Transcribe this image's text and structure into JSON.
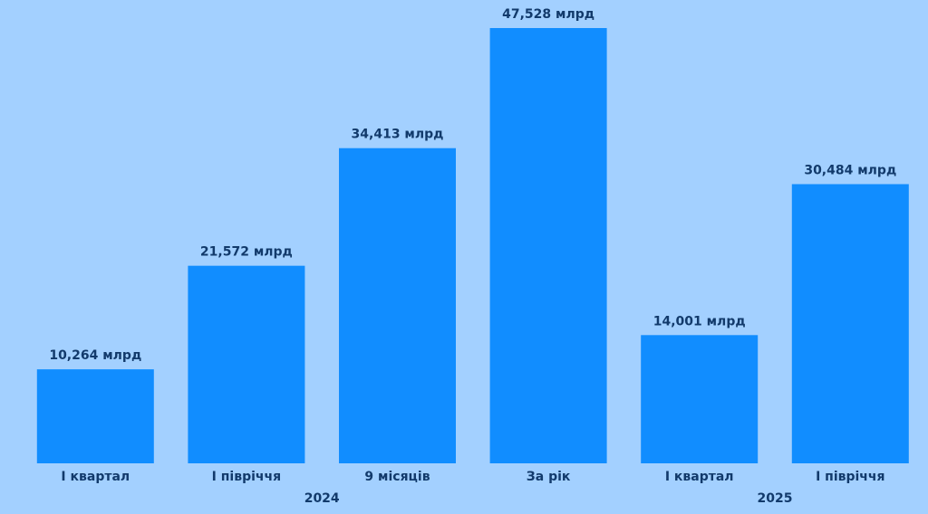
{
  "chart_data": {
    "type": "bar",
    "color": "#118dff",
    "groups": [
      {
        "name": "2024",
        "categories": [
          "І квартал",
          "І півріччя",
          "9 місяців",
          "За рік"
        ],
        "values": [
          10.264,
          21.572,
          34.413,
          47.528
        ],
        "value_labels": [
          "10,264 млрд",
          "21,572 млрд",
          "34,413 млрд",
          "47,528 млрд"
        ]
      },
      {
        "name": "2025",
        "categories": [
          "І квартал",
          "І півріччя"
        ],
        "values": [
          14.001,
          30.484
        ],
        "value_labels": [
          "14,001 млрд",
          "30,484 млрд"
        ]
      }
    ]
  }
}
